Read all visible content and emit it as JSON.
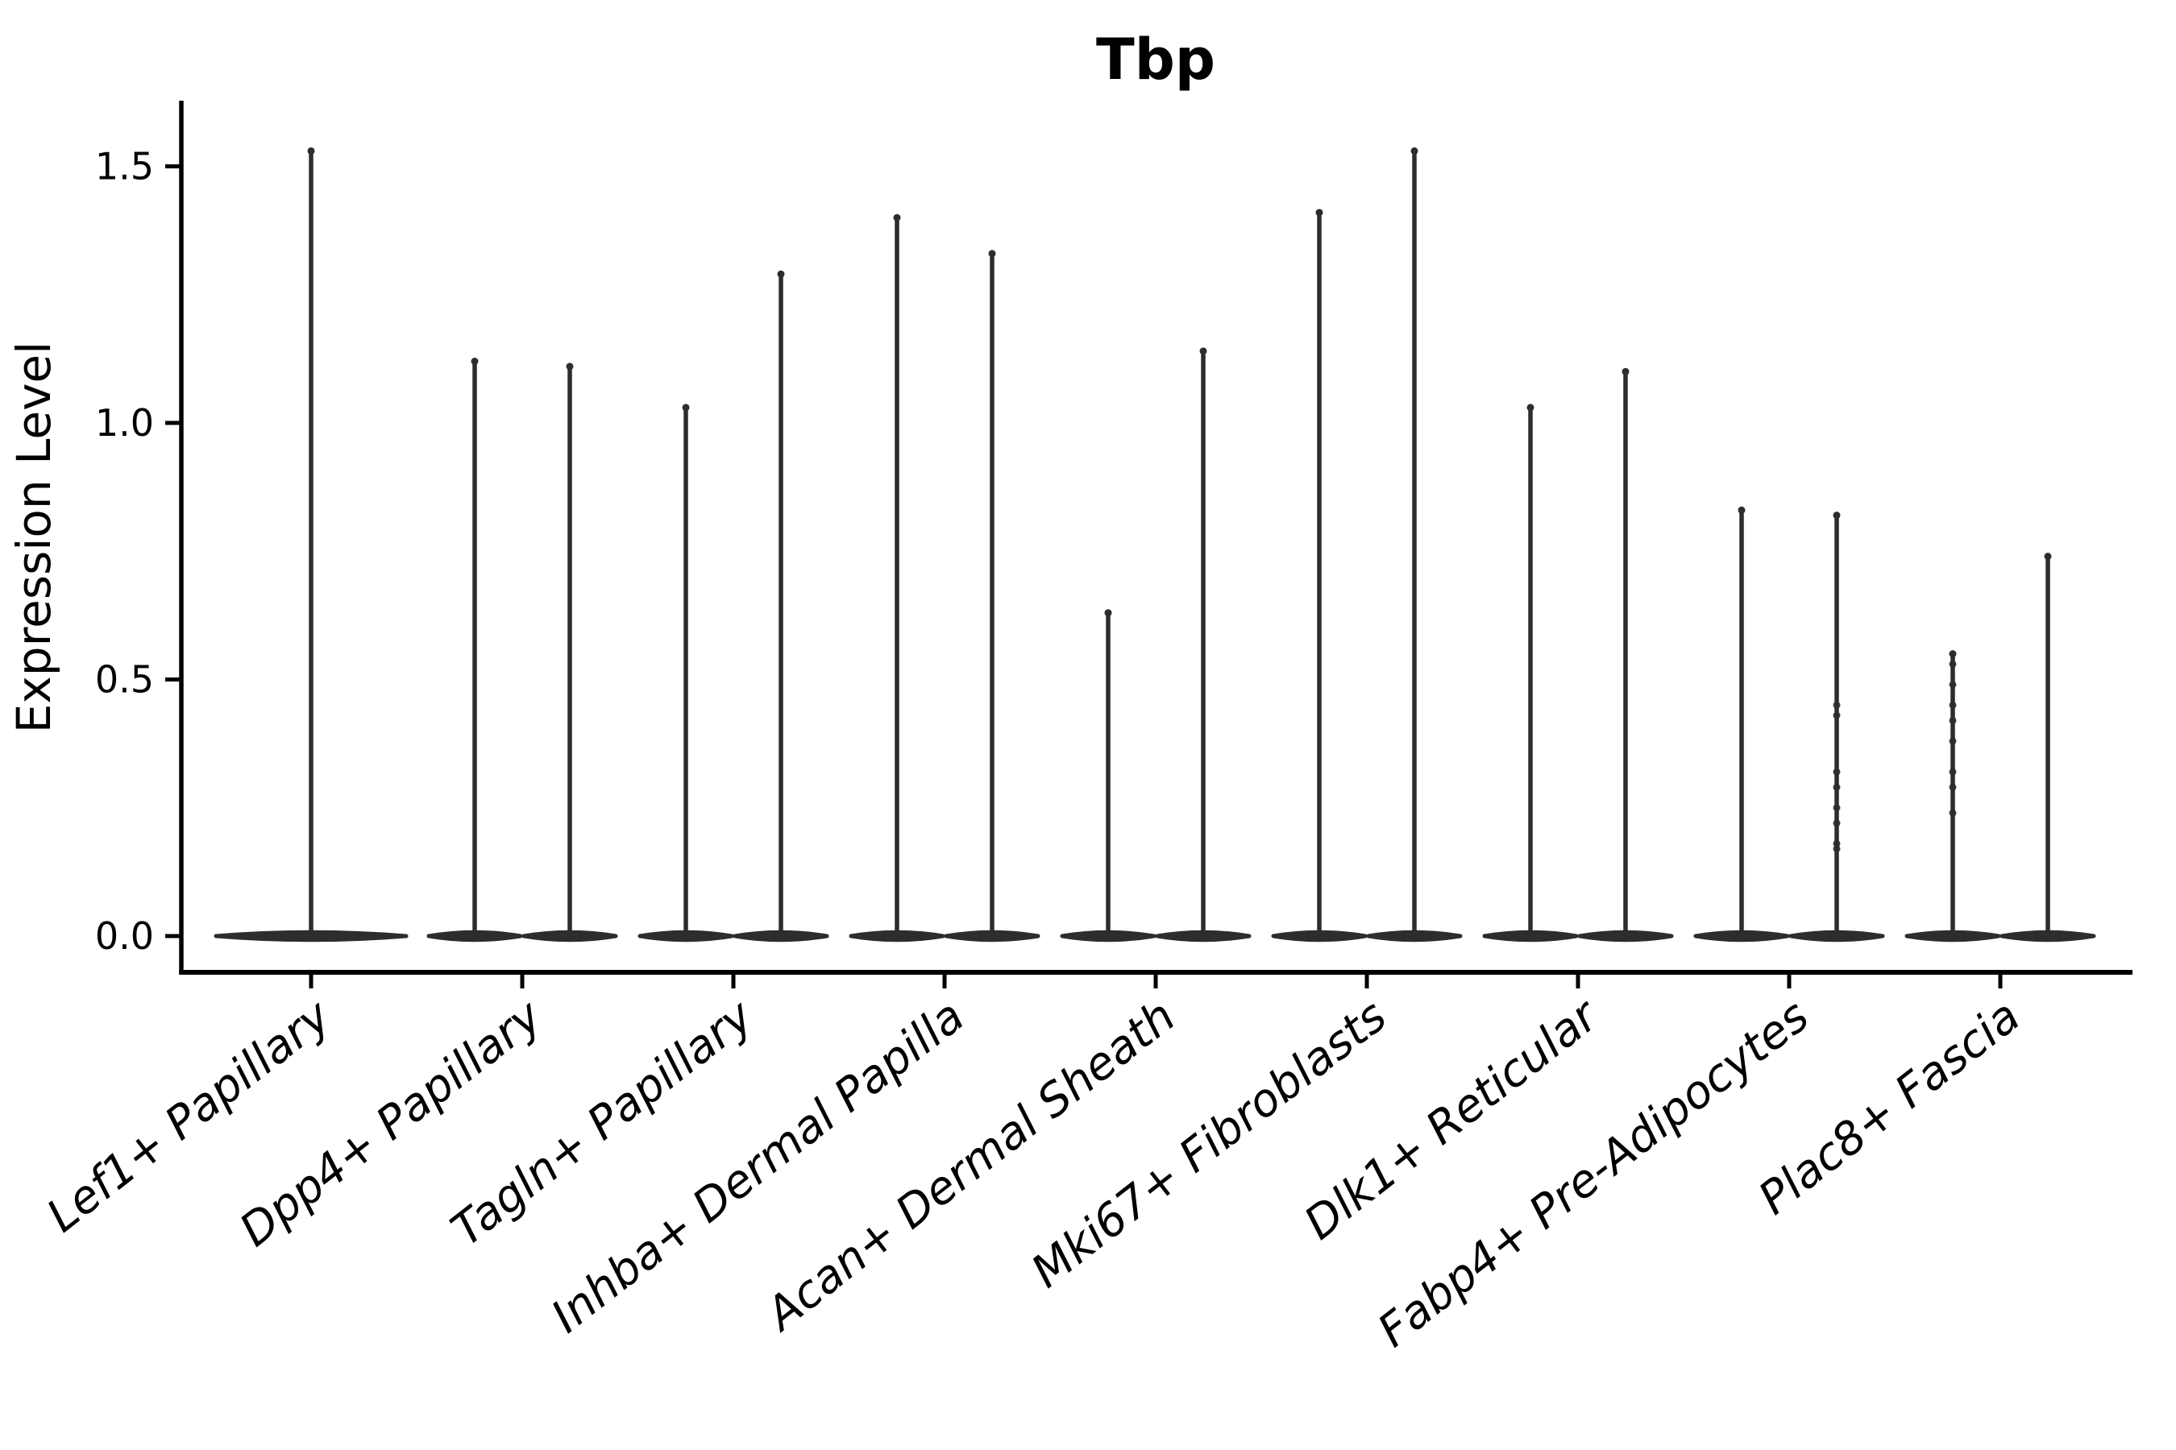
{
  "figure": {
    "title": "Tbp",
    "ylabel": "Expression Level"
  },
  "chart_data": {
    "type": "violin",
    "title": "Tbp",
    "xlabel": "",
    "ylabel": "Expression Level",
    "ylim": [
      -0.07,
      1.62
    ],
    "ytick_labels": [
      "0.0",
      "0.5",
      "1.0",
      "1.5"
    ],
    "ytick_values": [
      0.0,
      0.5,
      1.0,
      1.5
    ],
    "grid": false,
    "legend": null,
    "violin_color": "#2d2d2d",
    "axis_color": "#000000",
    "categories": [
      {
        "label": "Lef1+ Papillary",
        "violins": [
          {
            "max": 1.53,
            "wide": true,
            "dots": []
          }
        ]
      },
      {
        "label": "Dpp4+ Papillary",
        "violins": [
          {
            "max": 1.12,
            "dots": []
          },
          {
            "max": 1.11,
            "dots": []
          }
        ]
      },
      {
        "label": "Tagln+ Papillary",
        "violins": [
          {
            "max": 1.03,
            "dots": []
          },
          {
            "max": 1.29,
            "dots": []
          }
        ]
      },
      {
        "label": "Inhba+ Dermal Papilla",
        "violins": [
          {
            "max": 1.4,
            "dots": []
          },
          {
            "max": 1.33,
            "dots": []
          }
        ]
      },
      {
        "label": "Acan+ Dermal Sheath",
        "violins": [
          {
            "max": 0.63,
            "dots": []
          },
          {
            "max": 1.14,
            "dots": []
          }
        ]
      },
      {
        "label": "Mki67+ Fibroblasts",
        "violins": [
          {
            "max": 1.41,
            "dots": []
          },
          {
            "max": 1.53,
            "dots": []
          }
        ]
      },
      {
        "label": "Dlk1+ Reticular",
        "violins": [
          {
            "max": 1.03,
            "dots": []
          },
          {
            "max": 1.1,
            "dots": []
          }
        ]
      },
      {
        "label": "Fabp4+ Pre-Adipocytes",
        "violins": [
          {
            "max": 0.83,
            "dots": []
          },
          {
            "max": 0.82,
            "dots": [
              0.45,
              0.43,
              0.32,
              0.29,
              0.25,
              0.22,
              0.18,
              0.17
            ]
          }
        ]
      },
      {
        "label": "Plac8+ Fascia",
        "violins": [
          {
            "max": 0.55,
            "dots": [
              0.53,
              0.49,
              0.45,
              0.42,
              0.38,
              0.32,
              0.29,
              0.24
            ]
          },
          {
            "max": 0.74,
            "dots": []
          }
        ]
      }
    ],
    "notes": "Each violin is a dense flat mass at expression 0 with a hairline spike rising to its maximum expression value."
  }
}
